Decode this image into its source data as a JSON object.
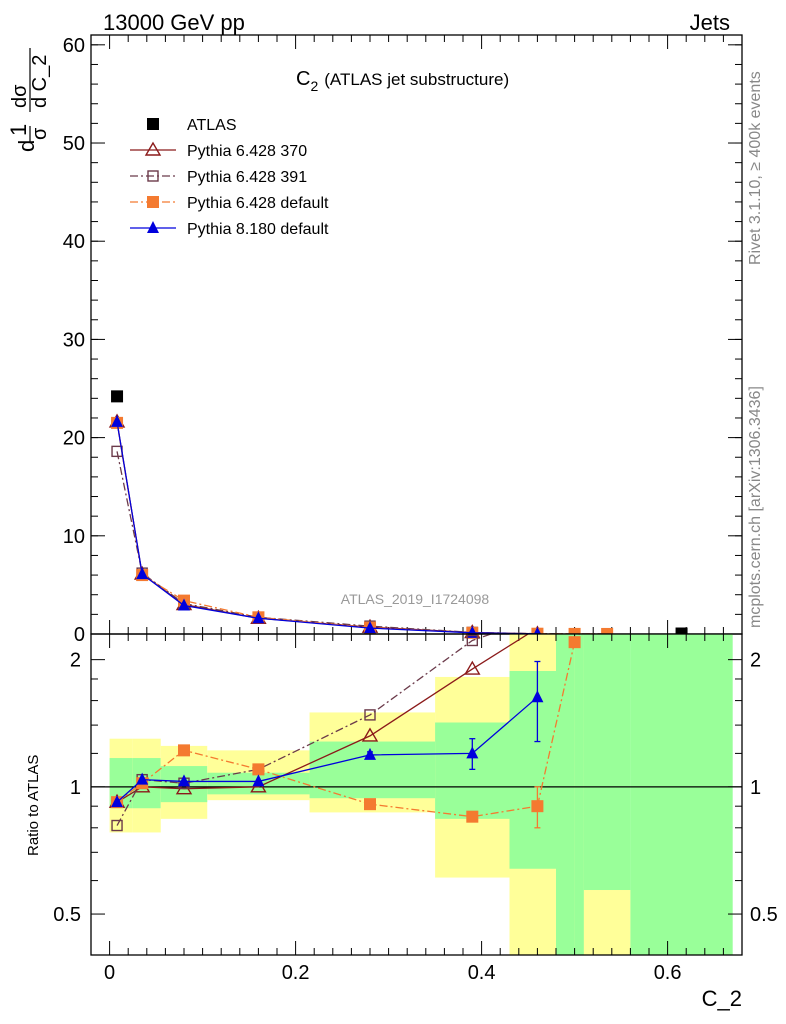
{
  "header": {
    "left": "13000 GeV pp",
    "right": "Jets"
  },
  "side": {
    "rivet": "Rivet 3.1.10, ≥ 400k events",
    "mcplots": "mcplots.cern.ch [arXiv:1306.3436]"
  },
  "chart_data": [
    {
      "type": "scatter",
      "title_main": "C",
      "title_sub": "2",
      "title_rest": "(ATLAS jet substructure)",
      "watermark": "ATLAS_2019_I1724098",
      "ylabel": {
        "d": "d",
        "one": "1",
        "sigma": "σ",
        "dsigma": "dσ",
        "dC": "d C_2"
      },
      "xlim": [
        -0.02,
        0.68
      ],
      "ylim": [
        0,
        61
      ],
      "y_ticks": [
        0,
        10,
        20,
        30,
        40,
        50,
        60
      ],
      "y_tick_labels": [
        "0",
        "10",
        "20",
        "30",
        "40",
        "50",
        "60"
      ],
      "legend_position": "top-left",
      "series": [
        {
          "name": "ATLAS",
          "color": "#000000",
          "marker": "square-filled",
          "line": "none",
          "x": [
            0.008,
            0.615
          ],
          "y": [
            24.2,
            0.05
          ]
        },
        {
          "name": "Pythia 6.428 370",
          "color": "#8b1a1a",
          "marker": "triangle-open",
          "line": "solid",
          "x": [
            0.008,
            0.035,
            0.08,
            0.16,
            0.28,
            0.39,
            0.46
          ],
          "y": [
            21.6,
            6.1,
            3.0,
            1.6,
            0.7,
            0.15,
            0.02
          ]
        },
        {
          "name": "Pythia 6.428 391",
          "color": "#6b3a4a",
          "marker": "square-open",
          "line": "dashdot",
          "x": [
            0.008,
            0.035,
            0.08,
            0.16,
            0.28,
            0.39,
            0.46,
            0.5,
            0.535
          ],
          "y": [
            18.6,
            6.2,
            3.1,
            1.7,
            0.8,
            0.16,
            0.03,
            0.01,
            0.005
          ]
        },
        {
          "name": "Pythia 6.428 default",
          "color": "#f47a30",
          "marker": "square-filled",
          "line": "dashdot",
          "x": [
            0.008,
            0.035,
            0.08,
            0.16,
            0.28,
            0.39,
            0.46,
            0.5,
            0.535
          ],
          "y": [
            21.5,
            6.0,
            3.4,
            1.7,
            0.65,
            0.12,
            0.03,
            0.01,
            0.005
          ]
        },
        {
          "name": "Pythia 8.180 default",
          "color": "#0000dd",
          "marker": "triangle-filled",
          "line": "solid",
          "x": [
            0.008,
            0.035,
            0.08,
            0.16,
            0.28,
            0.39,
            0.46
          ],
          "y": [
            21.6,
            6.1,
            2.9,
            1.6,
            0.6,
            0.12,
            0.02
          ]
        }
      ]
    },
    {
      "type": "scatter",
      "xlabel": "C_2",
      "ylabel": "Ratio to ATLAS",
      "xlim": [
        -0.02,
        0.68
      ],
      "ylim": [
        0.4,
        2.3
      ],
      "x_ticks": [
        0,
        0.2,
        0.4,
        0.6
      ],
      "x_tick_labels": [
        "0",
        "0.2",
        "0.4",
        "0.6"
      ],
      "y_ticks": [
        0.5,
        1,
        2
      ],
      "y_tick_labels": [
        "0.5",
        "1",
        "2"
      ],
      "log_scale_y": true,
      "bands": [
        {
          "x": [
            0.0,
            0.025
          ],
          "yellow": [
            0.78,
            1.3
          ],
          "green": [
            0.89,
            1.17
          ]
        },
        {
          "x": [
            0.025,
            0.055
          ],
          "yellow": [
            0.78,
            1.3
          ],
          "green": [
            0.89,
            1.17
          ]
        },
        {
          "x": [
            0.055,
            0.105
          ],
          "yellow": [
            0.84,
            1.25
          ],
          "green": [
            0.92,
            1.12
          ]
        },
        {
          "x": [
            0.105,
            0.215
          ],
          "yellow": [
            0.93,
            1.22
          ],
          "green": [
            0.96,
            1.08
          ]
        },
        {
          "x": [
            0.215,
            0.35
          ],
          "yellow": [
            0.87,
            1.5
          ],
          "green": [
            0.94,
            1.28
          ]
        },
        {
          "x": [
            0.35,
            0.43
          ],
          "yellow": [
            0.61,
            1.82
          ],
          "green": [
            0.84,
            1.42
          ]
        },
        {
          "x": [
            0.43,
            0.48
          ],
          "yellow": [
            0.35,
            2.3
          ],
          "green": [
            0.64,
            1.88
          ]
        },
        {
          "x": [
            0.48,
            0.5
          ],
          "yellow": [
            0.35,
            2.3
          ],
          "green": [
            0.35,
            2.3
          ]
        },
        {
          "x": [
            0.5,
            0.51
          ],
          "yellow": [
            0.35,
            2.3
          ],
          "green": [
            0.35,
            2.3
          ]
        },
        {
          "x": [
            0.51,
            0.56
          ],
          "yellow": [
            0.35,
            0.57
          ],
          "green": [
            0.57,
            2.3
          ]
        },
        {
          "x": [
            0.56,
            0.67
          ],
          "yellow": [
            0.35,
            0.35
          ],
          "green": [
            0.35,
            2.3
          ]
        }
      ],
      "series": [
        {
          "name": "Pythia 6.428 370",
          "color": "#8b1a1a",
          "marker": "triangle-open",
          "line": "solid",
          "x": [
            0.008,
            0.035,
            0.08,
            0.16,
            0.28,
            0.39,
            0.45
          ],
          "y": [
            0.92,
            1.0,
            0.99,
            1.0,
            1.32,
            1.9,
            2.3
          ]
        },
        {
          "name": "Pythia 6.428 391",
          "color": "#6b3a4a",
          "marker": "square-open",
          "line": "dashdot",
          "x": [
            0.008,
            0.035,
            0.08,
            0.16,
            0.28,
            0.39,
            0.41
          ],
          "y": [
            0.81,
            1.04,
            1.02,
            1.1,
            1.48,
            2.22,
            2.3
          ]
        },
        {
          "name": "Pythia 6.428 default",
          "color": "#f47a30",
          "marker": "square-filled",
          "line": "dashdot",
          "x": [
            0.008,
            0.035,
            0.08,
            0.16,
            0.28,
            0.39,
            0.46,
            0.5,
            0.505
          ],
          "y": [
            0.92,
            1.02,
            1.22,
            1.1,
            0.91,
            0.85,
            0.9,
            2.2,
            2.3
          ],
          "err": [
            0,
            0,
            0,
            0,
            0,
            0.02,
            0.1,
            0,
            0
          ]
        },
        {
          "name": "Pythia 8.180 default",
          "color": "#0000dd",
          "marker": "triangle-filled",
          "line": "solid",
          "x": [
            0.008,
            0.035,
            0.08,
            0.16,
            0.28,
            0.39,
            0.46
          ],
          "y": [
            0.92,
            1.04,
            1.03,
            1.03,
            1.19,
            1.2,
            1.63
          ],
          "err": [
            0,
            0,
            0,
            0,
            0.02,
            0.1,
            0.35
          ]
        }
      ]
    }
  ]
}
